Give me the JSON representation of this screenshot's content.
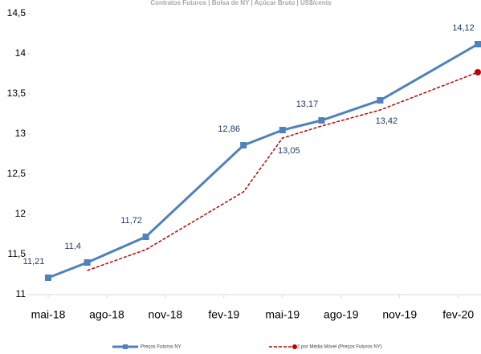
{
  "chart_data": {
    "type": "line",
    "title": "Contratos Futuros | Bolsa de NY | Açúcar Bruto | US$/cents",
    "x": [
      "2018-05",
      "2018-07",
      "2018-10",
      "2019-03",
      "2019-05",
      "2019-07",
      "2019-10",
      "2020-03"
    ],
    "xlim": [
      "2018-05",
      "2020-03"
    ],
    "xticks": [
      {
        "value": "2018-05",
        "label": "mai-18"
      },
      {
        "value": "2018-08",
        "label": "ago-18"
      },
      {
        "value": "2018-11",
        "label": "nov-18"
      },
      {
        "value": "2019-02",
        "label": "fev-19"
      },
      {
        "value": "2019-05",
        "label": "mai-19"
      },
      {
        "value": "2019-08",
        "label": "ago-19"
      },
      {
        "value": "2019-11",
        "label": "nov-19"
      },
      {
        "value": "2020-02",
        "label": "fev-20"
      }
    ],
    "ylim": [
      11,
      14.5
    ],
    "yticks": [
      11,
      {
        "value": 11.5,
        "label": "11,5"
      },
      12,
      {
        "value": 12.5,
        "label": "12,5"
      },
      13,
      {
        "value": 13.5,
        "label": "13,5"
      },
      14,
      {
        "value": 14.5,
        "label": "14,5"
      }
    ],
    "series": [
      {
        "name": "Preços Futuros NY",
        "color": "#4f81bd",
        "values": [
          11.21,
          11.4,
          11.72,
          12.86,
          13.05,
          13.17,
          13.42,
          14.12
        ],
        "value_labels": [
          "11,21",
          "11,4",
          "11,72",
          "12,86",
          "13,05",
          "13,17",
          "13,42",
          "14,12"
        ]
      },
      {
        "name": "2 por Média Móvel (Preços Futuros NY)",
        "color": "#c00000",
        "values": [
          null,
          11.3,
          11.56,
          12.28,
          12.95,
          13.1,
          13.3,
          13.77
        ]
      }
    ]
  }
}
